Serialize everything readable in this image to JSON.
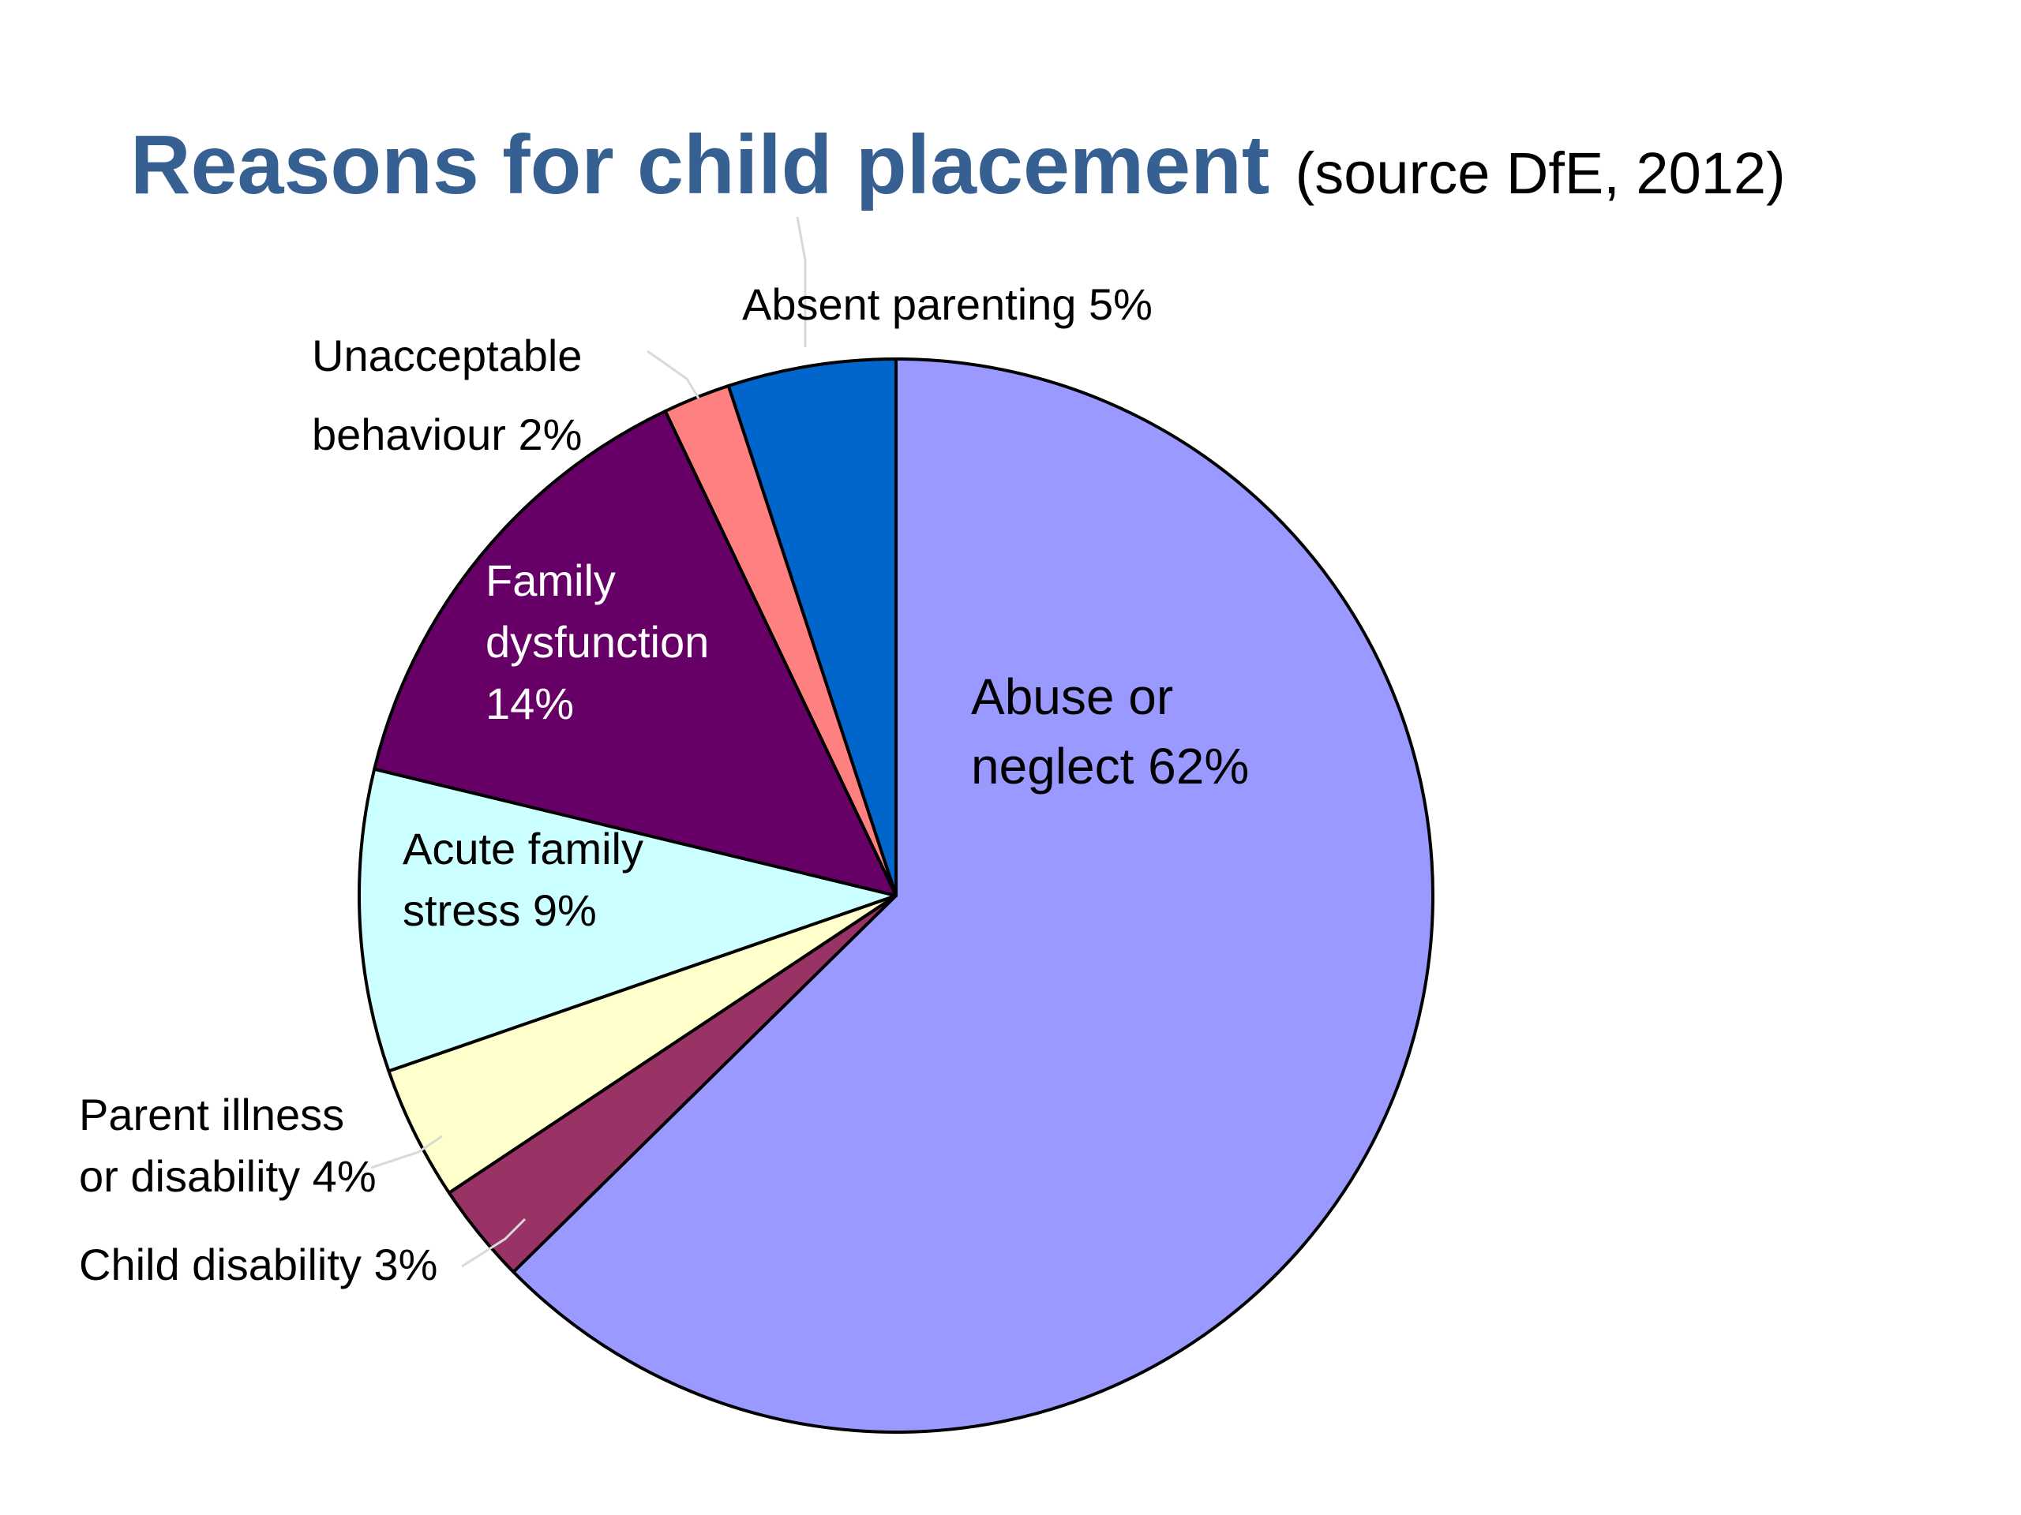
{
  "slide": {
    "title": "Reasons for child placement",
    "subtitle": "(source DfE, 2012)",
    "title_color": "#366092",
    "subtitle_color": "#000000"
  },
  "chart_data": {
    "type": "pie",
    "title": "Reasons for child placement",
    "subtitle": "(source DfE, 2012)",
    "start": "12 o'clock",
    "direction": "clockwise",
    "legend": "none (labels on/next to slices)",
    "slices": [
      {
        "name": "Abuse or neglect",
        "value": 62,
        "label_lines": [
          "Abuse or",
          "neglect 62%"
        ],
        "color": "#9999FF",
        "label_color": "#000000"
      },
      {
        "name": "Child disability",
        "value": 3,
        "label_lines": [
          "Child disability 3%"
        ],
        "color": "#993366",
        "label_color": "#000000"
      },
      {
        "name": "Parent illness or disability",
        "value": 4,
        "label_lines": [
          "Parent illness",
          "or disability 4%"
        ],
        "color": "#FFFFCC",
        "label_color": "#000000"
      },
      {
        "name": "Acute family stress",
        "value": 9,
        "label_lines": [
          "Acute family",
          "stress 9%"
        ],
        "color": "#CCFFFF",
        "label_color": "#000000"
      },
      {
        "name": "Family dysfunction",
        "value": 14,
        "label_lines": [
          "Family",
          "dysfunction",
          "14%"
        ],
        "color": "#660066",
        "label_color": "#FFFFFF"
      },
      {
        "name": "Unacceptable behaviour",
        "value": 2,
        "label_lines": [
          "Unacceptable",
          "behaviour 2%"
        ],
        "color": "#FF8080",
        "label_color": "#000000"
      },
      {
        "name": "Absent parenting",
        "value": 5,
        "label_lines": [
          "Absent parenting 5%"
        ],
        "color": "#0066CC",
        "label_color": "#000000"
      }
    ]
  }
}
